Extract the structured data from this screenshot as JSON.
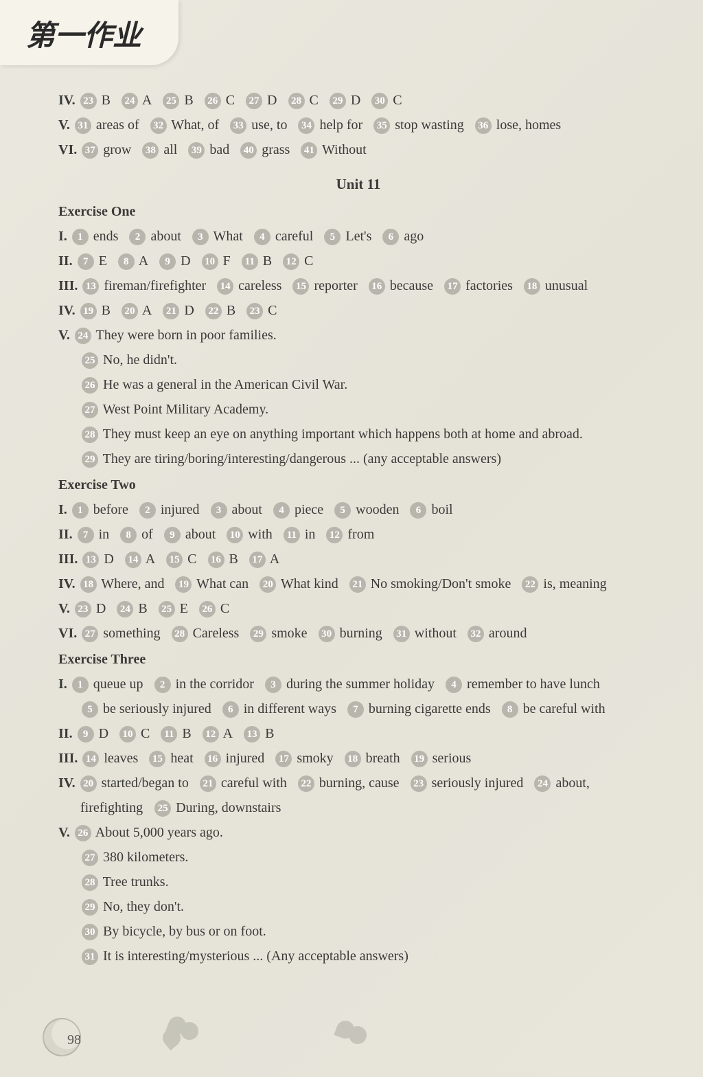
{
  "header": {
    "title": "第一作业"
  },
  "page_number": "98",
  "top_tail": {
    "iv": {
      "label": "IV.",
      "items": [
        {
          "n": "23",
          "a": "B"
        },
        {
          "n": "24",
          "a": "A"
        },
        {
          "n": "25",
          "a": "B"
        },
        {
          "n": "26",
          "a": "C"
        },
        {
          "n": "27",
          "a": "D"
        },
        {
          "n": "28",
          "a": "C"
        },
        {
          "n": "29",
          "a": "D"
        },
        {
          "n": "30",
          "a": "C"
        }
      ]
    },
    "v": {
      "label": "V.",
      "items": [
        {
          "n": "31",
          "a": "areas of"
        },
        {
          "n": "32",
          "a": "What, of"
        },
        {
          "n": "33",
          "a": "use, to"
        },
        {
          "n": "34",
          "a": "help for"
        },
        {
          "n": "35",
          "a": "stop wasting"
        },
        {
          "n": "36",
          "a": "lose, homes"
        }
      ]
    },
    "vi": {
      "label": "VI.",
      "items": [
        {
          "n": "37",
          "a": "grow"
        },
        {
          "n": "38",
          "a": "all"
        },
        {
          "n": "39",
          "a": "bad"
        },
        {
          "n": "40",
          "a": "grass"
        },
        {
          "n": "41",
          "a": "Without"
        }
      ]
    }
  },
  "unit_title": "Unit 11",
  "ex1": {
    "title": "Exercise One",
    "i": {
      "label": "I.",
      "items": [
        {
          "n": "1",
          "a": "ends"
        },
        {
          "n": "2",
          "a": "about"
        },
        {
          "n": "3",
          "a": "What"
        },
        {
          "n": "4",
          "a": "careful"
        },
        {
          "n": "5",
          "a": "Let's"
        },
        {
          "n": "6",
          "a": "ago"
        }
      ]
    },
    "ii": {
      "label": "II.",
      "items": [
        {
          "n": "7",
          "a": "E"
        },
        {
          "n": "8",
          "a": "A"
        },
        {
          "n": "9",
          "a": "D"
        },
        {
          "n": "10",
          "a": "F"
        },
        {
          "n": "11",
          "a": "B"
        },
        {
          "n": "12",
          "a": "C"
        }
      ]
    },
    "iii": {
      "label": "III.",
      "items": [
        {
          "n": "13",
          "a": "fireman/firefighter"
        },
        {
          "n": "14",
          "a": "careless"
        },
        {
          "n": "15",
          "a": "reporter"
        },
        {
          "n": "16",
          "a": "because"
        },
        {
          "n": "17",
          "a": "factories"
        },
        {
          "n": "18",
          "a": "unusual"
        }
      ]
    },
    "iv": {
      "label": "IV.",
      "items": [
        {
          "n": "19",
          "a": "B"
        },
        {
          "n": "20",
          "a": "A"
        },
        {
          "n": "21",
          "a": "D"
        },
        {
          "n": "22",
          "a": "B"
        },
        {
          "n": "23",
          "a": "C"
        }
      ]
    },
    "v": {
      "label": "V.",
      "lines": [
        {
          "n": "24",
          "a": "They were born in poor families."
        },
        {
          "n": "25",
          "a": "No, he didn't."
        },
        {
          "n": "26",
          "a": "He was a general in the American Civil War."
        },
        {
          "n": "27",
          "a": "West Point Military Academy."
        },
        {
          "n": "28",
          "a": "They must keep an eye on anything important which happens both at home and abroad."
        },
        {
          "n": "29",
          "a": "They are tiring/boring/interesting/dangerous ... (any acceptable answers)"
        }
      ]
    }
  },
  "ex2": {
    "title": "Exercise Two",
    "i": {
      "label": "I.",
      "items": [
        {
          "n": "1",
          "a": "before"
        },
        {
          "n": "2",
          "a": "injured"
        },
        {
          "n": "3",
          "a": "about"
        },
        {
          "n": "4",
          "a": "piece"
        },
        {
          "n": "5",
          "a": "wooden"
        },
        {
          "n": "6",
          "a": "boil"
        }
      ]
    },
    "ii": {
      "label": "II.",
      "items": [
        {
          "n": "7",
          "a": "in"
        },
        {
          "n": "8",
          "a": "of"
        },
        {
          "n": "9",
          "a": "about"
        },
        {
          "n": "10",
          "a": "with"
        },
        {
          "n": "11",
          "a": "in"
        },
        {
          "n": "12",
          "a": "from"
        }
      ]
    },
    "iii": {
      "label": "III.",
      "items": [
        {
          "n": "13",
          "a": "D"
        },
        {
          "n": "14",
          "a": "A"
        },
        {
          "n": "15",
          "a": "C"
        },
        {
          "n": "16",
          "a": "B"
        },
        {
          "n": "17",
          "a": "A"
        }
      ]
    },
    "iv": {
      "label": "IV.",
      "items": [
        {
          "n": "18",
          "a": "Where, and"
        },
        {
          "n": "19",
          "a": "What can"
        },
        {
          "n": "20",
          "a": "What kind"
        },
        {
          "n": "21",
          "a": "No smoking/Don't smoke"
        },
        {
          "n": "22",
          "a": "is, meaning"
        }
      ]
    },
    "v": {
      "label": "V.",
      "items": [
        {
          "n": "23",
          "a": "D"
        },
        {
          "n": "24",
          "a": "B"
        },
        {
          "n": "25",
          "a": "E"
        },
        {
          "n": "26",
          "a": "C"
        }
      ]
    },
    "vi": {
      "label": "VI.",
      "items": [
        {
          "n": "27",
          "a": "something"
        },
        {
          "n": "28",
          "a": "Careless"
        },
        {
          "n": "29",
          "a": "smoke"
        },
        {
          "n": "30",
          "a": "burning"
        },
        {
          "n": "31",
          "a": "without"
        },
        {
          "n": "32",
          "a": "around"
        }
      ]
    }
  },
  "ex3": {
    "title": "Exercise Three",
    "i": {
      "label": "I.",
      "row1": [
        {
          "n": "1",
          "a": "queue up"
        },
        {
          "n": "2",
          "a": "in the corridor"
        },
        {
          "n": "3",
          "a": "during the summer holiday"
        },
        {
          "n": "4",
          "a": "remember to have lunch"
        }
      ],
      "row2": [
        {
          "n": "5",
          "a": "be seriously injured"
        },
        {
          "n": "6",
          "a": "in different ways"
        },
        {
          "n": "7",
          "a": "burning cigarette ends"
        },
        {
          "n": "8",
          "a": "be careful with"
        }
      ]
    },
    "ii": {
      "label": "II.",
      "items": [
        {
          "n": "9",
          "a": "D"
        },
        {
          "n": "10",
          "a": "C"
        },
        {
          "n": "11",
          "a": "B"
        },
        {
          "n": "12",
          "a": "A"
        },
        {
          "n": "13",
          "a": "B"
        }
      ]
    },
    "iii": {
      "label": "III.",
      "items": [
        {
          "n": "14",
          "a": "leaves"
        },
        {
          "n": "15",
          "a": "heat"
        },
        {
          "n": "16",
          "a": "injured"
        },
        {
          "n": "17",
          "a": "smoky"
        },
        {
          "n": "18",
          "a": "breath"
        },
        {
          "n": "19",
          "a": "serious"
        }
      ]
    },
    "iv": {
      "label": "IV.",
      "row1": [
        {
          "n": "20",
          "a": "started/began to"
        },
        {
          "n": "21",
          "a": "careful with"
        },
        {
          "n": "22",
          "a": "burning, cause"
        },
        {
          "n": "23",
          "a": "seriously injured"
        },
        {
          "n": "24",
          "a": "about,"
        }
      ],
      "row2_prefix": "firefighting",
      "row2": [
        {
          "n": "25",
          "a": "During, downstairs"
        }
      ]
    },
    "v": {
      "label": "V.",
      "lines": [
        {
          "n": "26",
          "a": "About 5,000 years ago."
        },
        {
          "n": "27",
          "a": "380 kilometers."
        },
        {
          "n": "28",
          "a": "Tree trunks."
        },
        {
          "n": "29",
          "a": "No, they don't."
        },
        {
          "n": "30",
          "a": "By bicycle, by bus or on foot."
        },
        {
          "n": "31",
          "a": "It is interesting/mysterious ... (Any acceptable answers)"
        }
      ]
    }
  }
}
